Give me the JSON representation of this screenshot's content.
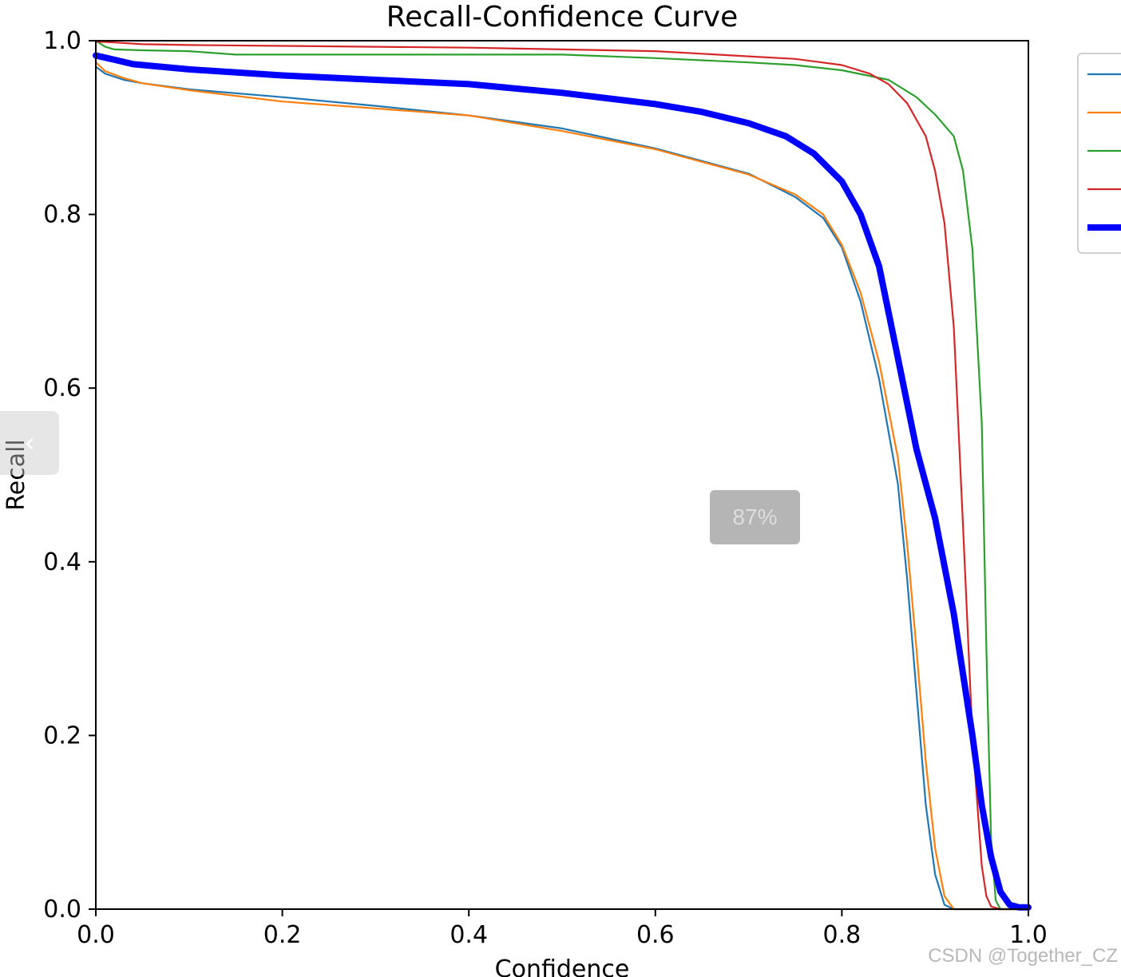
{
  "chart_data": {
    "type": "line",
    "title": "Recall-Confidence Curve",
    "xlabel": "Confidence",
    "ylabel": "Recall",
    "xlim": [
      0,
      1
    ],
    "ylim": [
      0,
      1
    ],
    "xticks": [
      "0.0",
      "0.2",
      "0.4",
      "0.6",
      "0.8",
      "1.0"
    ],
    "yticks": [
      "0.0",
      "0.2",
      "0.4",
      "0.6",
      "0.8",
      "1.0"
    ],
    "grid": false,
    "legend": "right, outside plot (labels cropped)",
    "series": [
      {
        "color": "#1f77b4",
        "width": "thin",
        "x": [
          0,
          0.01,
          0.03,
          0.05,
          0.1,
          0.2,
          0.3,
          0.4,
          0.5,
          0.6,
          0.7,
          0.75,
          0.78,
          0.8,
          0.82,
          0.84,
          0.86,
          0.87,
          0.88,
          0.89,
          0.9,
          0.91,
          0.92,
          0.93,
          0.94,
          1.0
        ],
        "y": [
          0.97,
          0.962,
          0.955,
          0.951,
          0.944,
          0.935,
          0.925,
          0.914,
          0.899,
          0.876,
          0.847,
          0.82,
          0.796,
          0.762,
          0.7,
          0.61,
          0.49,
          0.38,
          0.25,
          0.12,
          0.04,
          0.005,
          0,
          0,
          0,
          0
        ]
      },
      {
        "color": "#ff7f0e",
        "width": "thin",
        "x": [
          0,
          0.01,
          0.03,
          0.05,
          0.1,
          0.2,
          0.3,
          0.4,
          0.5,
          0.6,
          0.7,
          0.75,
          0.78,
          0.8,
          0.82,
          0.84,
          0.86,
          0.87,
          0.88,
          0.89,
          0.9,
          0.91,
          0.92,
          0.93,
          0.94,
          1.0
        ],
        "y": [
          0.975,
          0.965,
          0.957,
          0.951,
          0.943,
          0.93,
          0.922,
          0.914,
          0.896,
          0.875,
          0.846,
          0.823,
          0.8,
          0.765,
          0.71,
          0.63,
          0.52,
          0.42,
          0.3,
          0.17,
          0.07,
          0.015,
          0,
          0,
          0,
          0
        ]
      },
      {
        "color": "#2ca02c",
        "width": "thin",
        "x": [
          0,
          0.01,
          0.02,
          0.05,
          0.1,
          0.15,
          0.2,
          0.3,
          0.4,
          0.5,
          0.6,
          0.7,
          0.75,
          0.8,
          0.85,
          0.88,
          0.9,
          0.92,
          0.93,
          0.94,
          0.95,
          0.955,
          0.96,
          0.965,
          0.97,
          1.0
        ],
        "y": [
          1.0,
          0.993,
          0.99,
          0.989,
          0.988,
          0.984,
          0.984,
          0.984,
          0.984,
          0.984,
          0.98,
          0.975,
          0.972,
          0.966,
          0.955,
          0.935,
          0.915,
          0.89,
          0.85,
          0.76,
          0.56,
          0.3,
          0.08,
          0.01,
          0,
          0
        ]
      },
      {
        "color": "#d62728",
        "width": "thin",
        "x": [
          0,
          0.02,
          0.05,
          0.1,
          0.2,
          0.3,
          0.4,
          0.5,
          0.6,
          0.7,
          0.75,
          0.8,
          0.83,
          0.85,
          0.87,
          0.89,
          0.9,
          0.91,
          0.92,
          0.93,
          0.94,
          0.95,
          0.955,
          0.96,
          0.97,
          1.0
        ],
        "y": [
          0.999,
          0.998,
          0.996,
          0.995,
          0.994,
          0.993,
          0.992,
          0.99,
          0.988,
          0.982,
          0.979,
          0.972,
          0.962,
          0.95,
          0.928,
          0.89,
          0.85,
          0.79,
          0.67,
          0.44,
          0.2,
          0.05,
          0.015,
          0.003,
          0,
          0
        ]
      },
      {
        "color": "#0000ff",
        "width": "thick",
        "x": [
          0,
          0.02,
          0.04,
          0.1,
          0.2,
          0.3,
          0.4,
          0.5,
          0.6,
          0.65,
          0.7,
          0.74,
          0.77,
          0.8,
          0.82,
          0.84,
          0.86,
          0.88,
          0.9,
          0.92,
          0.94,
          0.95,
          0.96,
          0.97,
          0.98,
          0.99,
          1.0
        ],
        "y": [
          0.983,
          0.978,
          0.973,
          0.967,
          0.96,
          0.955,
          0.95,
          0.94,
          0.927,
          0.918,
          0.905,
          0.89,
          0.87,
          0.838,
          0.8,
          0.74,
          0.635,
          0.53,
          0.45,
          0.34,
          0.2,
          0.12,
          0.06,
          0.02,
          0.005,
          0.002,
          0.002
        ]
      }
    ]
  },
  "overlay": {
    "zoom_label": "87%",
    "nav_arrow": "‹",
    "watermark": "CSDN @Together_CZ"
  }
}
